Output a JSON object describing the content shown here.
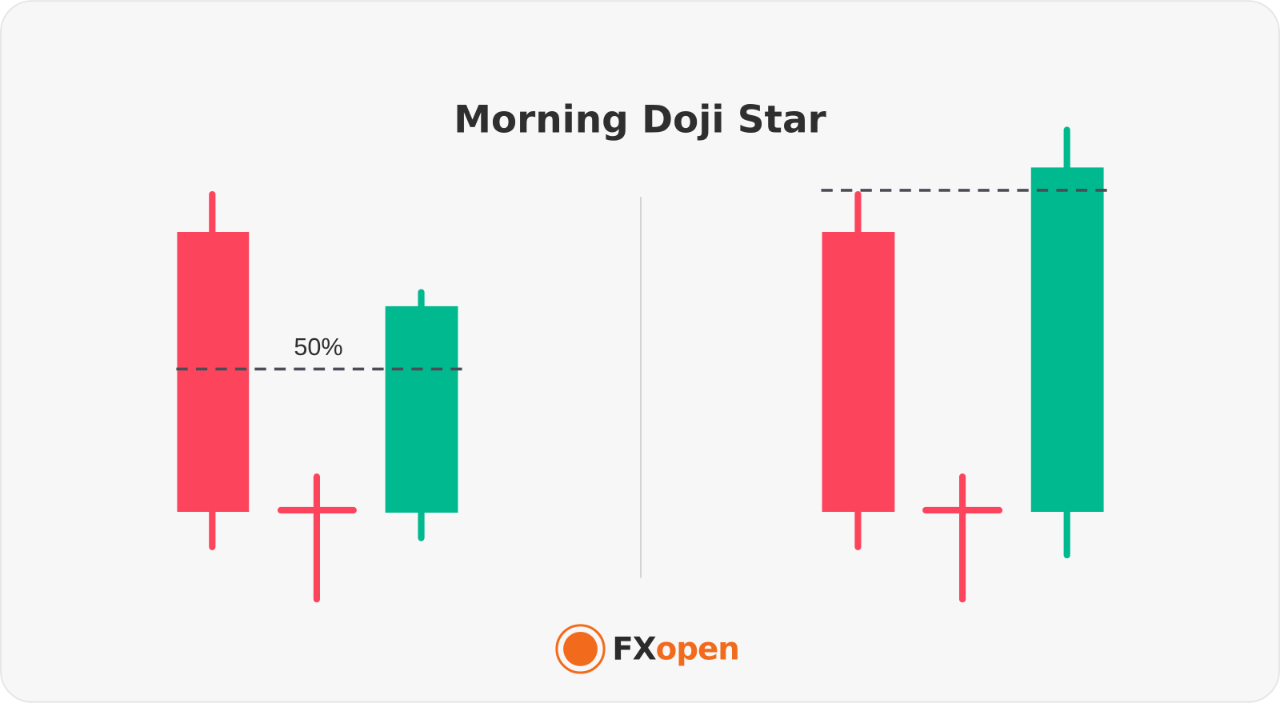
{
  "title": "Morning Doji Star",
  "annotation": "50%",
  "logo": {
    "prefix": "FX",
    "suffix": "open"
  }
}
